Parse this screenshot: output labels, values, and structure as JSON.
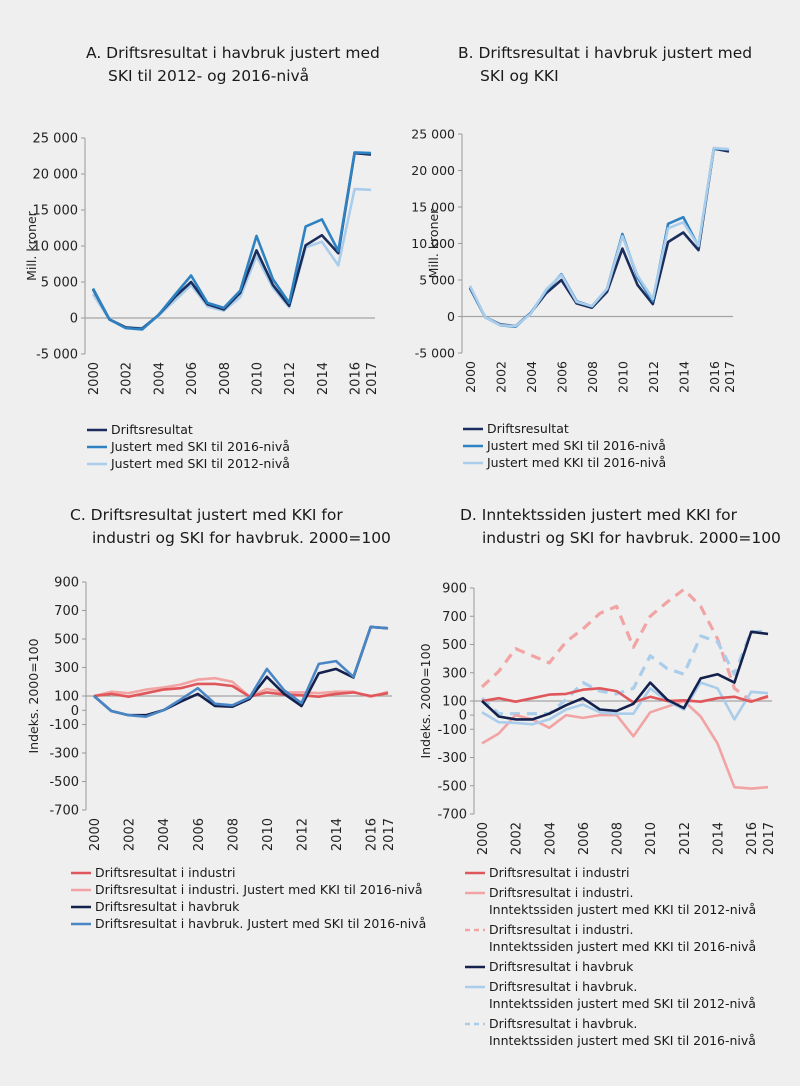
{
  "chart_data": [
    {
      "id": "A",
      "type": "line",
      "title_line1": "A. Driftsresultat i havbruk justert med",
      "title_line2": "SKI til 2012- og 2016-nivå",
      "ylabel": "Mill. kroner",
      "xlabel": "",
      "ylim": [
        -5000,
        25000
      ],
      "yticks": [
        25000,
        20000,
        15000,
        10000,
        5000,
        0,
        -5000
      ],
      "ytick_labels": [
        "25 000",
        "20 000",
        "15 000",
        "10 000",
        "5 000",
        "0",
        "-5 000"
      ],
      "x": [
        2000,
        2001,
        2002,
        2003,
        2004,
        2005,
        2006,
        2007,
        2008,
        2009,
        2010,
        2011,
        2012,
        2013,
        2014,
        2015,
        2016,
        2017
      ],
      "xtick_labels": [
        "2000",
        "2002",
        "2004",
        "2006",
        "2008",
        "2010",
        "2012",
        "2014",
        "2016",
        "2017"
      ],
      "baseline": 0,
      "legend_position": "bottom-left",
      "series": [
        {
          "name": "Justert med SKI til 2012-nivå",
          "color": "#a9cdea",
          "dash": false,
          "values": [
            3300,
            -200,
            -1300,
            -1400,
            300,
            2400,
            4600,
            1600,
            1000,
            2900,
            8600,
            4200,
            1500,
            9800,
            10600,
            7300,
            17900,
            17800
          ]
        },
        {
          "name": "Driftsresultat",
          "color": "#1b2d5c",
          "dash": false,
          "values": [
            4000,
            -200,
            -1300,
            -1500,
            400,
            2900,
            5000,
            1900,
            1200,
            3500,
            9400,
            4600,
            1700,
            10100,
            11500,
            9000,
            22900,
            22700
          ]
        },
        {
          "name": "Justert med SKI til 2016-nivå",
          "color": "#2f82c2",
          "dash": false,
          "values": [
            4100,
            -200,
            -1400,
            -1600,
            400,
            3200,
            5900,
            2100,
            1400,
            3800,
            11400,
            5400,
            2100,
            12700,
            13700,
            9300,
            23000,
            22900
          ]
        }
      ],
      "legend_order": [
        1,
        2,
        0
      ]
    },
    {
      "id": "B",
      "type": "line",
      "title_line1": "B. Driftsresultat i havbruk justert med",
      "title_line2": "SKI og KKI",
      "ylabel": "Mill. kroner",
      "xlabel": "",
      "ylim": [
        -5000,
        25000
      ],
      "yticks": [
        25000,
        20000,
        15000,
        10000,
        5000,
        0,
        -5000
      ],
      "ytick_labels": [
        "25 000",
        "20 000",
        "15 000",
        "10 000",
        "5 000",
        "0",
        "-5 000"
      ],
      "x": [
        2000,
        2001,
        2002,
        2003,
        2004,
        2005,
        2006,
        2007,
        2008,
        2009,
        2010,
        2011,
        2012,
        2013,
        2014,
        2015,
        2016,
        2017
      ],
      "xtick_labels": [
        "2000",
        "2002",
        "2004",
        "2006",
        "2008",
        "2010",
        "2012",
        "2014",
        "2016",
        "2017"
      ],
      "baseline": 0,
      "legend_position": "bottom-left",
      "series": [
        {
          "name": "Driftsresultat",
          "color": "#1b2d5c",
          "dash": false,
          "values": [
            3900,
            -100,
            -1100,
            -1300,
            500,
            3200,
            5000,
            1800,
            1200,
            3400,
            9300,
            4300,
            1700,
            10200,
            11500,
            9100,
            23000,
            22600
          ]
        },
        {
          "name": "Justert med SKI til 2016-nivå",
          "color": "#2f82c2",
          "dash": false,
          "values": [
            4000,
            -100,
            -1200,
            -1400,
            500,
            3500,
            5800,
            2100,
            1400,
            3800,
            11300,
            5300,
            2100,
            12700,
            13600,
            9600,
            23000,
            22900
          ]
        },
        {
          "name": "Justert med KKI til 2016-nivå",
          "color": "#a9cdea",
          "dash": false,
          "values": [
            4200,
            -100,
            -1200,
            -1300,
            400,
            3700,
            5700,
            2000,
            1400,
            3800,
            11000,
            5600,
            2400,
            12100,
            12900,
            9700,
            23100,
            22900
          ]
        }
      ],
      "legend_order": [
        0,
        1,
        2
      ]
    },
    {
      "id": "C",
      "type": "line",
      "title_line1": "C. Driftsresultat justert med KKI for",
      "title_line2": "industri og SKI for havbruk. 2000=100",
      "ylabel": "Indeks. 2000=100",
      "xlabel": "",
      "ylim": [
        -700,
        900
      ],
      "yticks": [
        900,
        700,
        500,
        300,
        100,
        0,
        -100,
        -300,
        -500,
        -700
      ],
      "ytick_labels": [
        "900",
        "700",
        "500",
        "300",
        "100",
        "0",
        "-100",
        "-300",
        "-500",
        "-700"
      ],
      "x": [
        2000,
        2001,
        2002,
        2003,
        2004,
        2005,
        2006,
        2007,
        2008,
        2009,
        2010,
        2011,
        2012,
        2013,
        2014,
        2015,
        2016,
        2017
      ],
      "xtick_labels": [
        "2000",
        "2002",
        "2004",
        "2006",
        "2008",
        "2010",
        "2012",
        "2014",
        "2016",
        "2017"
      ],
      "baseline": 100,
      "legend_position": "bottom-left",
      "series": [
        {
          "name": "Driftsresultat i industri. Justert med KKI til 2016-nivå",
          "color": "#f2a3a3",
          "dash": false,
          "values": [
            100,
            130,
            120,
            145,
            160,
            180,
            215,
            225,
            200,
            95,
            150,
            125,
            125,
            120,
            130,
            130,
            95,
            130
          ]
        },
        {
          "name": "Driftsresultat i industri",
          "color": "#e0575b",
          "dash": false,
          "values": [
            100,
            115,
            95,
            120,
            145,
            155,
            185,
            185,
            170,
            95,
            125,
            110,
            105,
            95,
            115,
            125,
            100,
            120
          ]
        },
        {
          "name": "Driftsresultat i havbruk",
          "color": "#14214d",
          "dash": false,
          "values": [
            100,
            -5,
            -35,
            -35,
            0,
            60,
            115,
            30,
            25,
            80,
            235,
            115,
            30,
            260,
            290,
            230,
            585,
            575
          ]
        },
        {
          "name": "Driftsresultat i havbruk. Justert med SKI til 2016-nivå",
          "color": "#4a86c5",
          "dash": false,
          "values": [
            100,
            -5,
            -35,
            -45,
            0,
            75,
            155,
            45,
            35,
            90,
            290,
            140,
            50,
            325,
            345,
            235,
            585,
            575
          ]
        }
      ],
      "legend_order": [
        1,
        0,
        2,
        3
      ]
    },
    {
      "id": "D",
      "type": "line",
      "title_line1": "D. Inntektssiden justert med KKI for",
      "title_line2": "industri og SKI for havbruk.  2000=100",
      "ylabel": "Indeks. 2000=100",
      "xlabel": "",
      "ylim": [
        -700,
        900
      ],
      "yticks": [
        900,
        700,
        500,
        300,
        100,
        0,
        -100,
        -300,
        -500,
        -700
      ],
      "ytick_labels": [
        "900",
        "700",
        "500",
        "300",
        "100",
        "0",
        "-100",
        "-300",
        "-500",
        "-700"
      ],
      "x": [
        2000,
        2001,
        2002,
        2003,
        2004,
        2005,
        2006,
        2007,
        2008,
        2009,
        2010,
        2011,
        2012,
        2013,
        2014,
        2015,
        2016,
        2017
      ],
      "xtick_labels": [
        "2000",
        "2002",
        "2004",
        "2006",
        "2008",
        "2010",
        "2012",
        "2014",
        "2016",
        "2017"
      ],
      "baseline": 100,
      "legend_position": "bottom-left",
      "series": [
        {
          "name": "Driftsresultat i industri.\nInntektssiden justert med KKI til 2016-nivå",
          "color": "#f2a3a3",
          "dash": true,
          "values": [
            200,
            310,
            470,
            420,
            370,
            520,
            610,
            720,
            770,
            480,
            700,
            800,
            890,
            770,
            540,
            190,
            100,
            130
          ]
        },
        {
          "name": "Driftsresultat i havbruk.\nInntektssiden justert med SKI til 2016-nivå",
          "color": "#a9cdea",
          "dash": true,
          "values": [
            120,
            10,
            10,
            10,
            10,
            110,
            230,
            170,
            150,
            190,
            420,
            330,
            290,
            560,
            520,
            290,
            590,
            595
          ]
        },
        {
          "name": "Driftsresultat i industri.\nInntektssiden justert med KKI til 2012-nivå",
          "color": "#f2a3a3",
          "dash": false,
          "values": [
            -200,
            -130,
            0,
            -30,
            -90,
            0,
            -20,
            0,
            0,
            -150,
            20,
            60,
            100,
            -10,
            -200,
            -510,
            -520,
            -510
          ]
        },
        {
          "name": "Driftsresultat i havbruk.\nInntektssiden justert med SKI til 2012-nivå",
          "color": "#a9cdea",
          "dash": false,
          "values": [
            20,
            -50,
            -55,
            -65,
            -30,
            40,
            75,
            20,
            10,
            10,
            190,
            100,
            40,
            230,
            190,
            -30,
            165,
            155
          ]
        },
        {
          "name": "Driftsresultat i industri",
          "color": "#e0575b",
          "dash": false,
          "values": [
            100,
            120,
            95,
            120,
            145,
            150,
            180,
            190,
            170,
            90,
            130,
            100,
            105,
            95,
            120,
            130,
            95,
            135
          ]
        },
        {
          "name": "Driftsresultat i havbruk",
          "color": "#14214d",
          "dash": false,
          "values": [
            100,
            -10,
            -30,
            -30,
            10,
            70,
            120,
            40,
            30,
            80,
            230,
            110,
            50,
            260,
            290,
            230,
            590,
            575
          ]
        }
      ],
      "legend_order": [
        4,
        2,
        0,
        5,
        3,
        1
      ]
    }
  ]
}
